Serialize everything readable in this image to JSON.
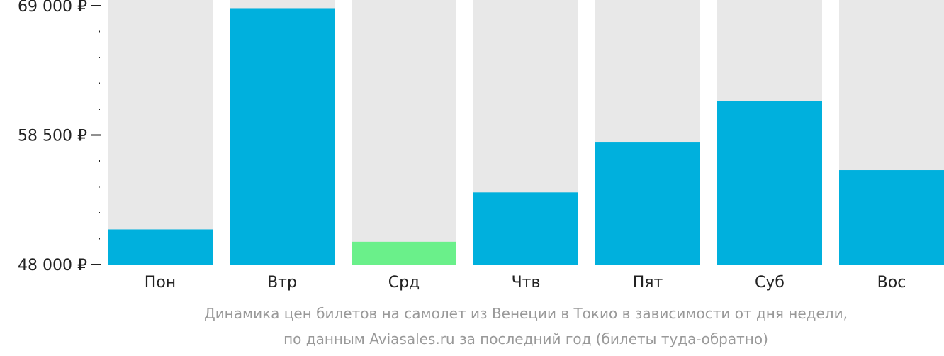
{
  "chart_data": {
    "type": "bar",
    "categories": [
      "Пон",
      "Втр",
      "Срд",
      "Чтв",
      "Пят",
      "Суб",
      "Вос"
    ],
    "values": [
      50850,
      68800,
      49850,
      53850,
      57950,
      61250,
      55650
    ],
    "ylim": [
      48000,
      69000
    ],
    "yticks": [
      {
        "value": 48000,
        "label": "48 000 ₽"
      },
      {
        "value": 58500,
        "label": "58 500 ₽"
      },
      {
        "value": 69000,
        "label": "69 000 ₽"
      }
    ],
    "minor_ytick_step": 2100,
    "colors": {
      "bar": "#00b0dd",
      "bar_lowest": "#6af08a",
      "background_bar": "#e8e8e8",
      "axis": "#222222"
    },
    "lowest_index": 2
  },
  "caption": {
    "line1": "Динамика цен билетов на самолет из Венеции в Токио в зависимости от дня недели,",
    "line2": "по данным Aviasales.ru за последний год (билеты туда-обратно)"
  }
}
